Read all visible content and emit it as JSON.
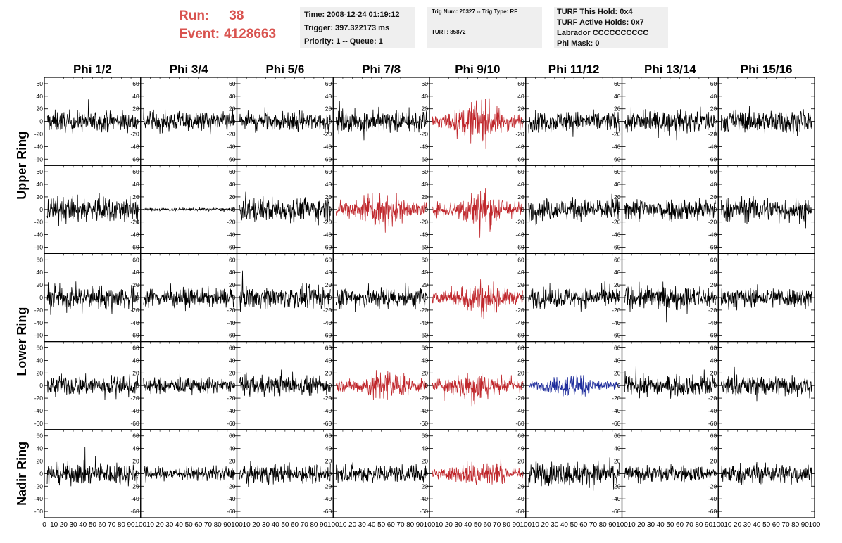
{
  "header": {
    "run_label": "Run:",
    "run_value": "38",
    "event_label": "Event:",
    "event_value": "4128663",
    "box1": {
      "time": "Time: 2008-12-24 01:19:12",
      "trigger": "Trigger: 397.322173 ms",
      "priority": "Priority: 1 -- Queue: 1"
    },
    "box2": {
      "trig": "Trig Num: 20327 -- Trig Type: RF",
      "turf": "TURF: 85872"
    },
    "box3": {
      "hold": "TURF This Hold: 0x4",
      "active": "TURF Active Holds: 0x7",
      "labrador": "Labrador CCCCCCCCCC",
      "phimask": "Phi Mask: 0"
    }
  },
  "chart_data": {
    "type": "line",
    "columns": [
      "Phi 1/2",
      "Phi 3/4",
      "Phi 5/6",
      "Phi 7/8",
      "Phi 9/10",
      "Phi 11/12",
      "Phi 13/14",
      "Phi 15/16"
    ],
    "row_groups": [
      "Upper Ring",
      "Lower Ring",
      "Nadir Ring"
    ],
    "rows": 5,
    "xlim": [
      0,
      100
    ],
    "ylim": [
      -70,
      70
    ],
    "y_ticks": [
      -60,
      -40,
      -20,
      0,
      20,
      40,
      60
    ],
    "x_ticks": [
      0,
      10,
      20,
      30,
      40,
      50,
      60,
      70,
      80,
      90,
      100
    ],
    "panels": [
      [
        {
          "amp": 14,
          "color": "#000000"
        },
        {
          "amp": 13,
          "color": "#000000"
        },
        {
          "amp": 13,
          "color": "#000000"
        },
        {
          "amp": 14,
          "color": "#000000"
        },
        {
          "amp": 22,
          "color": "#c0282d"
        },
        {
          "amp": 13,
          "color": "#000000"
        },
        {
          "amp": 14,
          "color": "#000000"
        },
        {
          "amp": 15,
          "color": "#000000"
        }
      ],
      [
        {
          "amp": 17,
          "color": "#000000"
        },
        {
          "amp": 2,
          "color": "#000000"
        },
        {
          "amp": 16,
          "color": "#000000"
        },
        {
          "amp": 21,
          "color": "#c0282d"
        },
        {
          "amp": 21,
          "color": "#c0282d"
        },
        {
          "amp": 14,
          "color": "#000000"
        },
        {
          "amp": 15,
          "color": "#000000"
        },
        {
          "amp": 16,
          "color": "#000000"
        }
      ],
      [
        {
          "amp": 15,
          "color": "#000000"
        },
        {
          "amp": 12,
          "color": "#000000"
        },
        {
          "amp": 14,
          "color": "#000000"
        },
        {
          "amp": 14,
          "color": "#000000"
        },
        {
          "amp": 19,
          "color": "#c0282d"
        },
        {
          "amp": 13,
          "color": "#000000"
        },
        {
          "amp": 15,
          "color": "#000000"
        },
        {
          "amp": 13,
          "color": "#000000"
        }
      ],
      [
        {
          "amp": 13,
          "color": "#000000"
        },
        {
          "amp": 10,
          "color": "#000000"
        },
        {
          "amp": 13,
          "color": "#000000"
        },
        {
          "amp": 17,
          "color": "#c0282d"
        },
        {
          "amp": 18,
          "color": "#c0282d"
        },
        {
          "amp": 13,
          "color": "#1f2d9c"
        },
        {
          "amp": 13,
          "color": "#000000"
        },
        {
          "amp": 14,
          "color": "#000000"
        }
      ],
      [
        {
          "amp": 14,
          "color": "#000000"
        },
        {
          "amp": 9,
          "color": "#000000"
        },
        {
          "amp": 12,
          "color": "#000000"
        },
        {
          "amp": 12,
          "color": "#000000"
        },
        {
          "amp": 16,
          "color": "#c0282d"
        },
        {
          "amp": 16,
          "color": "#000000"
        },
        {
          "amp": 11,
          "color": "#000000"
        },
        {
          "amp": 13,
          "color": "#000000"
        }
      ]
    ]
  }
}
